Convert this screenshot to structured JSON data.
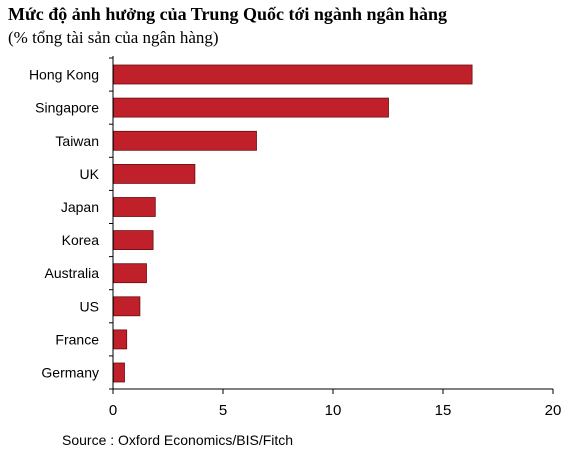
{
  "title": "Mức độ ảnh hưởng của Trung Quốc tới ngành ngân hàng",
  "subtitle": "(% tổng tài sản của ngân hàng)",
  "source": "Source : Oxford Economics/BIS/Fitch",
  "colors": {
    "bar": "#c0202a",
    "bar_stroke": "#6b0c10",
    "axis": "#000000"
  },
  "chart_data": {
    "type": "bar",
    "orientation": "horizontal",
    "categories": [
      "Hong Kong",
      "Singapore",
      "Taiwan",
      "UK",
      "Japan",
      "Korea",
      "Australia",
      "US",
      "France",
      "Germany"
    ],
    "values": [
      16.3,
      12.5,
      6.5,
      3.7,
      1.9,
      1.8,
      1.5,
      1.2,
      0.6,
      0.5
    ],
    "xlim": [
      0,
      20
    ],
    "xticks": [
      0,
      5,
      10,
      15,
      20
    ],
    "xlabel": "",
    "ylabel": "",
    "grid": false,
    "legend": "none"
  }
}
